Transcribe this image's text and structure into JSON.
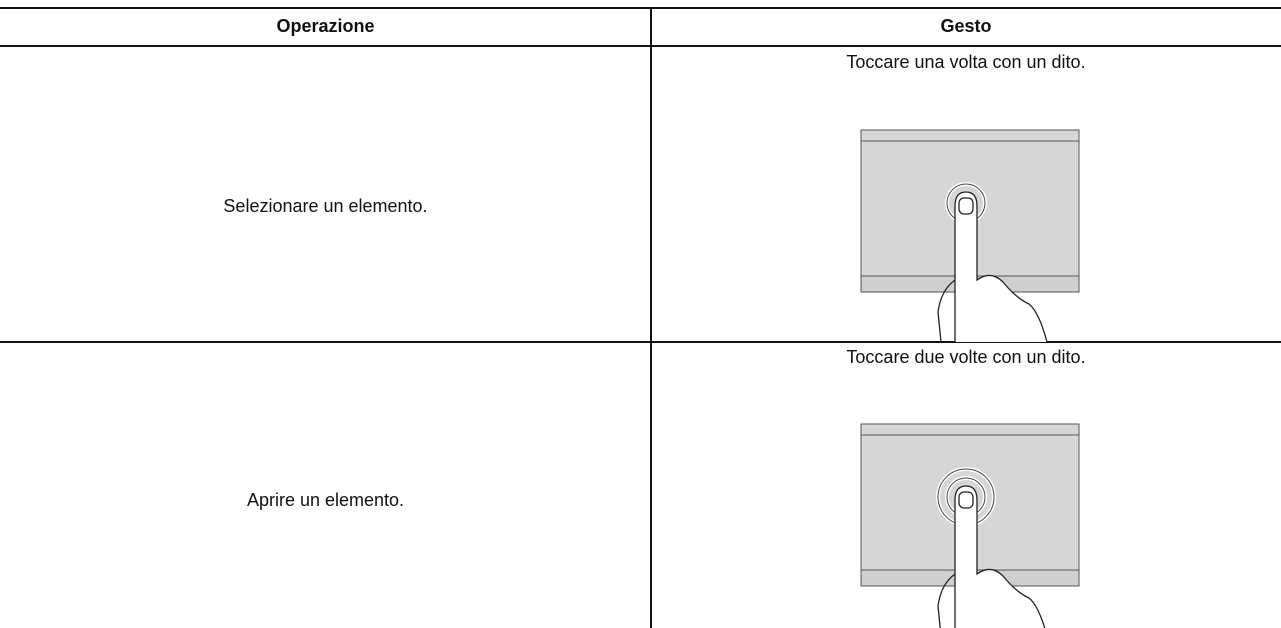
{
  "table": {
    "headers": [
      "Operazione",
      "Gesto"
    ],
    "rows": [
      [
        "Selezionare un elemento.",
        "Toccare una volta con un dito."
      ],
      [
        "Aprire un elemento.",
        "Toccare due volte con un dito."
      ]
    ]
  }
}
